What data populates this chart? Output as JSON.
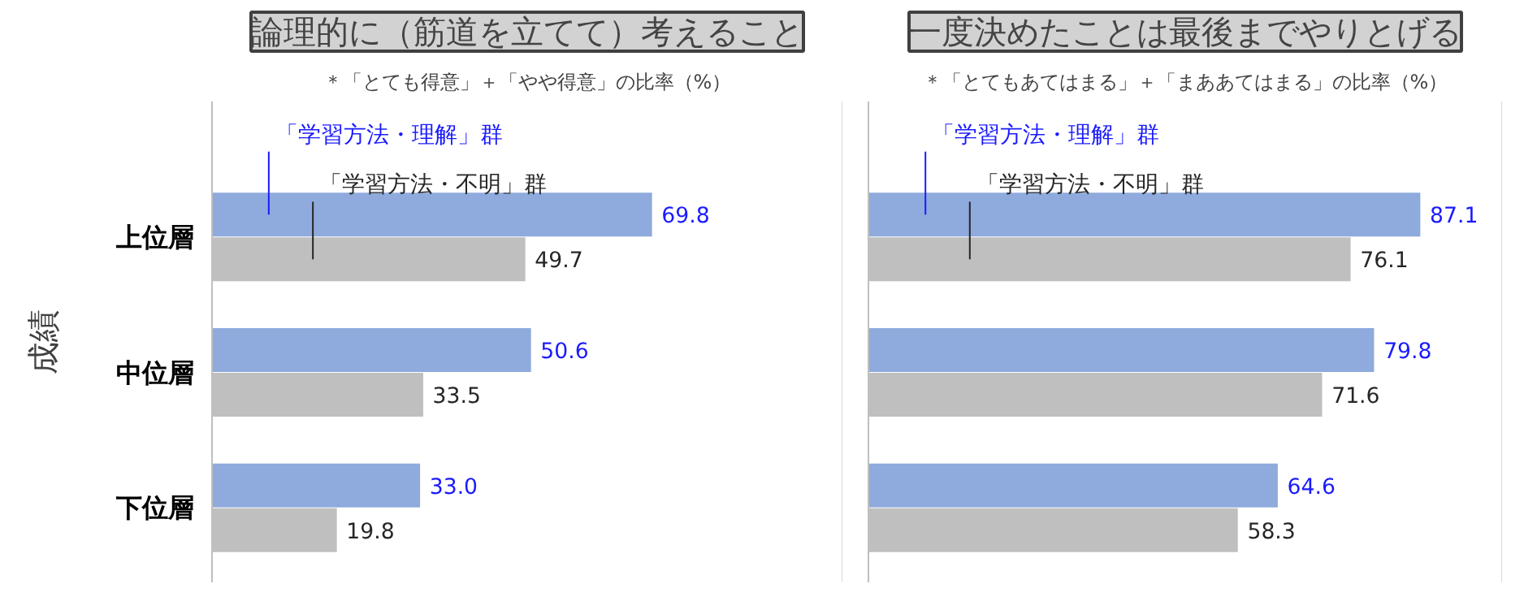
{
  "chart_data": [
    {
      "type": "bar",
      "orientation": "horizontal",
      "title": "論理的に（筋道を立てて）考えること",
      "subtitle": "＊「とても得意」＋「やや得意」の比率（%）",
      "ylabel": "成績",
      "categories": [
        "上位層",
        "中位層",
        "下位層"
      ],
      "series": [
        {
          "name": "「学習方法・理解」群",
          "color": "#8faadc",
          "values": [
            69.8,
            50.6,
            33.0
          ],
          "value_labels": [
            "69.8",
            "50.6",
            "33.0"
          ]
        },
        {
          "name": "「学習方法・不明」群",
          "color": "#bfbfbf",
          "values": [
            49.7,
            33.5,
            19.8
          ],
          "value_labels": [
            "49.7",
            "33.5",
            "19.8"
          ]
        }
      ],
      "xlim": [
        0,
        100
      ],
      "tick_labels": "y"
    },
    {
      "type": "bar",
      "orientation": "horizontal",
      "title": "一度決めたことは最後までやりとげる",
      "subtitle": "＊「とてもあてはまる」＋「まああてはまる」の比率（%）",
      "categories": [
        null,
        null,
        null
      ],
      "series": [
        {
          "name": "「学習方法・理解」群",
          "color": "#8faadc",
          "values": [
            87.1,
            79.8,
            64.6
          ],
          "value_labels": [
            "87.1",
            "79.8",
            "64.6"
          ]
        },
        {
          "name": "「学習方法・不明」群",
          "color": "#bfbfbf",
          "values": [
            76.1,
            71.6,
            58.3
          ],
          "value_labels": [
            "76.1",
            "71.6",
            "58.3"
          ]
        }
      ],
      "xlim": [
        0,
        100
      ],
      "tick_labels": false
    }
  ]
}
